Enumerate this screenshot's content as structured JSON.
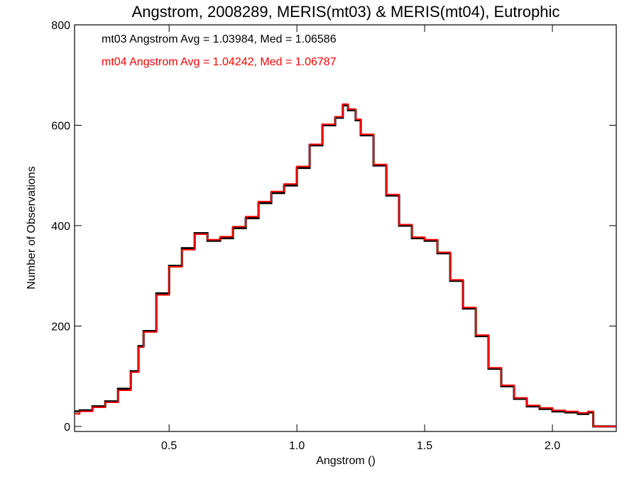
{
  "chart_data": {
    "type": "line",
    "title": "Angstrom, 2008289, MERIS(mt03) & MERIS(mt04), Eutrophic",
    "xlabel": "Angstrom ()",
    "ylabel": "Number of Observations",
    "xlim": [
      0.13,
      2.25
    ],
    "ylim": [
      -10,
      800
    ],
    "xticks": [
      0.5,
      1.0,
      1.5,
      2.0
    ],
    "xtick_labels": [
      "0.5",
      "1.0",
      "1.5",
      "2.0"
    ],
    "yticks": [
      0,
      200,
      400,
      600,
      800
    ],
    "ytick_labels": [
      "0",
      "200",
      "400",
      "600",
      "800"
    ],
    "grid": false,
    "annotations": [
      {
        "text": "mt03 Angstrom Avg = 1.03984, Med = 1.06586",
        "color": "#000000"
      },
      {
        "text": "mt04 Angstrom Avg = 1.04242, Med = 1.06787",
        "color": "#ff0000"
      }
    ],
    "series": [
      {
        "color": "#000000",
        "x": [
          0.13,
          0.15,
          0.2,
          0.25,
          0.3,
          0.35,
          0.38,
          0.4,
          0.45,
          0.5,
          0.55,
          0.6,
          0.65,
          0.7,
          0.75,
          0.8,
          0.85,
          0.9,
          0.95,
          1.0,
          1.05,
          1.1,
          1.15,
          1.18,
          1.2,
          1.23,
          1.25,
          1.3,
          1.35,
          1.4,
          1.45,
          1.5,
          1.55,
          1.6,
          1.65,
          1.7,
          1.75,
          1.8,
          1.85,
          1.9,
          1.95,
          2.0,
          2.05,
          2.1,
          2.14,
          2.16,
          2.25
        ],
        "y": [
          30,
          32,
          40,
          50,
          75,
          110,
          160,
          190,
          265,
          320,
          355,
          385,
          370,
          375,
          395,
          415,
          445,
          465,
          480,
          515,
          560,
          600,
          615,
          640,
          630,
          610,
          580,
          520,
          460,
          400,
          375,
          370,
          345,
          290,
          235,
          180,
          115,
          80,
          55,
          40,
          35,
          30,
          28,
          25,
          28,
          0,
          0
        ]
      },
      {
        "color": "#ff0000",
        "x": [
          0.13,
          0.15,
          0.2,
          0.25,
          0.3,
          0.35,
          0.38,
          0.4,
          0.45,
          0.5,
          0.55,
          0.6,
          0.65,
          0.7,
          0.75,
          0.8,
          0.85,
          0.9,
          0.95,
          1.0,
          1.05,
          1.1,
          1.15,
          1.18,
          1.2,
          1.23,
          1.25,
          1.3,
          1.35,
          1.4,
          1.45,
          1.5,
          1.55,
          1.6,
          1.65,
          1.7,
          1.75,
          1.8,
          1.85,
          1.9,
          1.95,
          2.0,
          2.05,
          2.1,
          2.14,
          2.16,
          2.25
        ],
        "y": [
          25,
          30,
          38,
          48,
          72,
          108,
          158,
          188,
          262,
          318,
          352,
          383,
          372,
          378,
          398,
          418,
          448,
          468,
          483,
          518,
          562,
          602,
          617,
          642,
          632,
          612,
          582,
          522,
          462,
          402,
          377,
          372,
          347,
          292,
          237,
          182,
          117,
          82,
          57,
          42,
          37,
          32,
          30,
          27,
          30,
          0,
          0
        ]
      }
    ]
  }
}
